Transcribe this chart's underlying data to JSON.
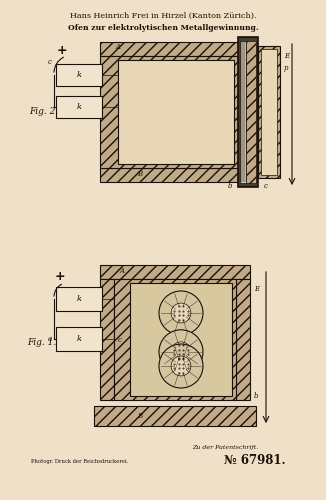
{
  "bg_color": "#f0e0c8",
  "line_color": "#1a1008",
  "hatch_fc": "#c0aa88",
  "inner_fc": "#d8c8a8",
  "cavity_fc": "#e8d8b8",
  "white_box_fc": "#f0e4cc",
  "title1": "Hans Heinrich Frei in Hirzel (Kanton Zürich).",
  "title2": "Ofen zur elektrolytischen Metallgewinnung.",
  "footer_left": "Photogr. Druck der Reichsdruckerei.",
  "footer_right": "№ 67981.",
  "footer_note": "Zu der Patentschrift.",
  "fig1_label": "Fig. 1.",
  "fig2_label": "Fig. 2."
}
